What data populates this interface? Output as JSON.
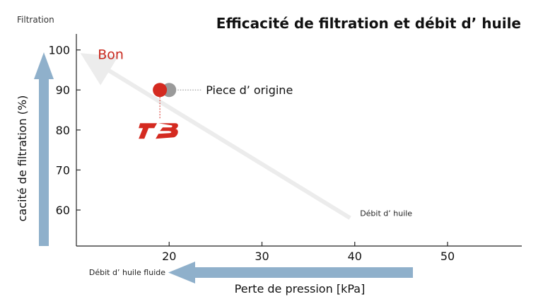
{
  "chart_data": {
    "type": "scatter",
    "title": "Efficacité de filtration et débit d’ huile",
    "corner_label": "Filtration",
    "ylabel": "cacité de filtration (%)",
    "xlabel": "Perte de pression [kPa]",
    "xlim": [
      10,
      58
    ],
    "ylim": [
      51,
      104
    ],
    "xticks": [
      20,
      30,
      40,
      50
    ],
    "yticks": [
      60,
      70,
      80,
      90,
      100
    ],
    "grid": false,
    "arrows": {
      "y_axis_arrow_color": "#8fb0cb",
      "x_axis_arrow_label": "Débit d’ huile fluide",
      "x_axis_arrow_color": "#8fb0cb",
      "diagonal_label": "Débit d’ huile",
      "diagonal_start": [
        39.5,
        58
      ],
      "diagonal_end": [
        12,
        97
      ],
      "diagonal_color": "#ececec",
      "good_label": "Bon",
      "good_color": "#c8281e"
    },
    "points": [
      {
        "name": "Piece d’ origine",
        "x": 20,
        "y": 90,
        "color": "#9a9a9a",
        "labeled": true
      },
      {
        "name": "",
        "x": 19,
        "y": 90,
        "color": "#d42a20",
        "labeled": false,
        "logo_marker": true
      }
    ],
    "logo_color": "#d42a20"
  }
}
